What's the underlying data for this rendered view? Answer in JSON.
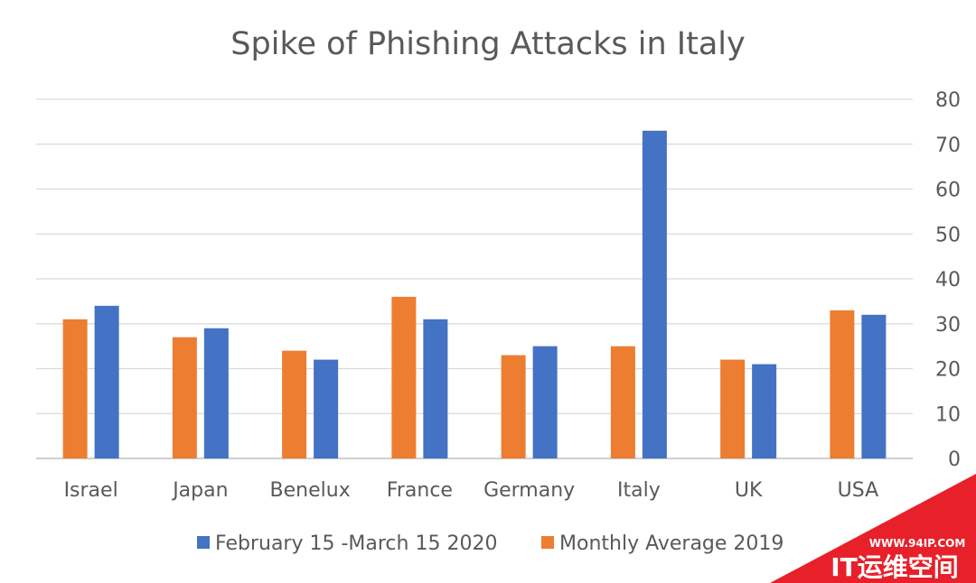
{
  "chart_data": {
    "type": "bar",
    "title": "Spike of Phishing Attacks in Italy",
    "categories": [
      "Israel",
      "Japan",
      "Benelux",
      "France",
      "Germany",
      "Italy",
      "UK",
      "USA"
    ],
    "series": [
      {
        "name": "Monthly Average 2019",
        "color": "#ed7d31",
        "values": [
          31,
          27,
          24,
          36,
          23,
          25,
          22,
          33
        ]
      },
      {
        "name": "February 15 -March 15 2020",
        "color": "#4472c4",
        "values": [
          34,
          29,
          22,
          31,
          25,
          73,
          21,
          32
        ]
      }
    ],
    "ylim": [
      0,
      80
    ],
    "yticks": [
      "0",
      "10",
      "20",
      "30",
      "40",
      "50",
      "60",
      "70",
      "80"
    ],
    "y_axis_side": "right",
    "grid": true,
    "legend": {
      "position": "bottom",
      "entries": [
        "February 15 -March 15 2020",
        "Monthly Average 2019"
      ]
    }
  },
  "watermark": {
    "url": "WWW.94IP.COM",
    "brand": "IT运维空间",
    "color": "#e8202a"
  }
}
